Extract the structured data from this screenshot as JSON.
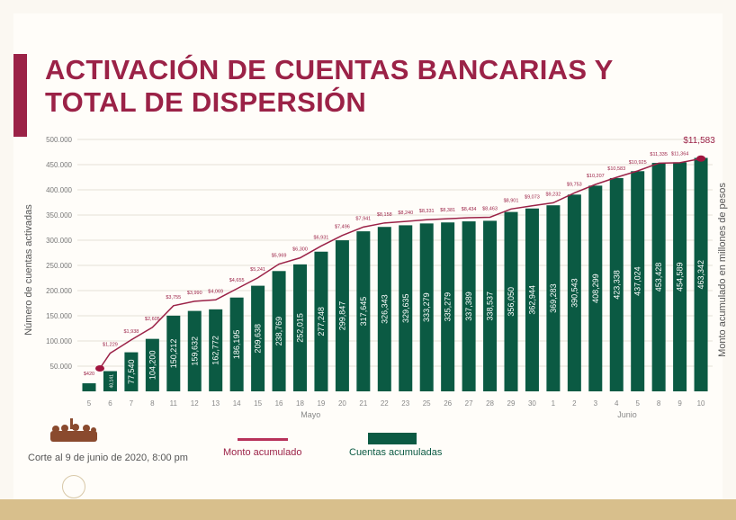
{
  "title": "ACTIVACIÓN DE CUENTAS BANCARIAS Y TOTAL DE DISPERSIÓN",
  "title_lines": [
    "ACTIVACIÓN DE CUENTAS BANCARIAS Y",
    "TOTAL DE DISPERSIÓN"
  ],
  "footer": {
    "cutoff": "Corte al 9 de junio de 2020, 8:00 pm"
  },
  "legend": {
    "line": "Monto acumulado",
    "bars": "Cuentas acumuladas"
  },
  "colors": {
    "bars": "#0b5a43",
    "line": "#9b2247",
    "accent": "#9b2247",
    "band": "#d8bf8c"
  },
  "chart_data": {
    "type": "bar+line",
    "ylabel": "Número de cuentas activadas",
    "y2label": "Monto acumulado en millones de pesos",
    "ylim": [
      0,
      500000
    ],
    "y2lim": [
      -800,
      12600
    ],
    "yticks": [
      "50.000",
      "100.000",
      "150.000",
      "200.000",
      "250.000",
      "300.000",
      "350.000",
      "400.000",
      "450.000",
      "500.000"
    ],
    "ytick_values": [
      50000,
      100000,
      150000,
      200000,
      250000,
      300000,
      350000,
      400000,
      450000,
      500000
    ],
    "grid": true,
    "legend_position": "bottom",
    "categories": [
      "5",
      "6",
      "7",
      "8",
      "11",
      "12",
      "13",
      "14",
      "15",
      "16",
      "18",
      "19",
      "20",
      "21",
      "22",
      "23",
      "25",
      "26",
      "27",
      "28",
      "29",
      "30",
      "1",
      "2",
      "3",
      "4",
      "5",
      "8",
      "9",
      "10"
    ],
    "month_labels": [
      {
        "label": "Mayo",
        "start": 0,
        "end": 21
      },
      {
        "label": "Junio",
        "start": 22,
        "end": 29
      }
    ],
    "series": [
      {
        "name": "Cuentas acumuladas",
        "type": "bar",
        "values": [
          16000,
          40141,
          77540,
          104200,
          150212,
          159632,
          162772,
          186195,
          209638,
          238769,
          252015,
          277248,
          299847,
          317645,
          326343,
          329635,
          333279,
          335279,
          337389,
          338537,
          356050,
          362944,
          369283,
          390543,
          408299,
          423338,
          437024,
          453428,
          454589,
          463342
        ],
        "labels": [
          "",
          "40,141",
          "77,540",
          "104,200",
          "150,212",
          "159,632",
          "162,772",
          "186,195",
          "209,638",
          "238,769",
          "252,015",
          "277,248",
          "299,847",
          "317,645",
          "326,343",
          "329,635",
          "333,279",
          "335,279",
          "337,389",
          "338,537",
          "356,050",
          "362,944",
          "369,283",
          "390,543",
          "408,299",
          "423,338",
          "437,024",
          "453,428",
          "454,589",
          "463,342"
        ]
      },
      {
        "name": "Monto acumulado",
        "type": "line",
        "values": [
          420,
          1229,
          1938,
          2605,
          3755,
          3990,
          4069,
          4655,
          5241,
          5969,
          6300,
          6931,
          7496,
          7941,
          8158,
          8240,
          8331,
          8381,
          8434,
          8463,
          8901,
          9073,
          9232,
          9753,
          10207,
          10583,
          10925,
          11335,
          11364,
          11583
        ],
        "labels": [
          "$420",
          "$1,229",
          "$1,938",
          "$2,605",
          "$3,755",
          "$3,990",
          "$4,069",
          "$4,655",
          "$5,241",
          "$5,969",
          "$6,300",
          "$6,931",
          "$7,496",
          "$7,941",
          "$8,158",
          "$8,240",
          "$8,331",
          "$8,381",
          "$8,434",
          "$8,463",
          "$8,901",
          "$9,073",
          "$9,232",
          "$9,753",
          "$10,207",
          "$10,583",
          "$10,925",
          "$11,335",
          "$11,364",
          "$11,583"
        ]
      }
    ]
  }
}
